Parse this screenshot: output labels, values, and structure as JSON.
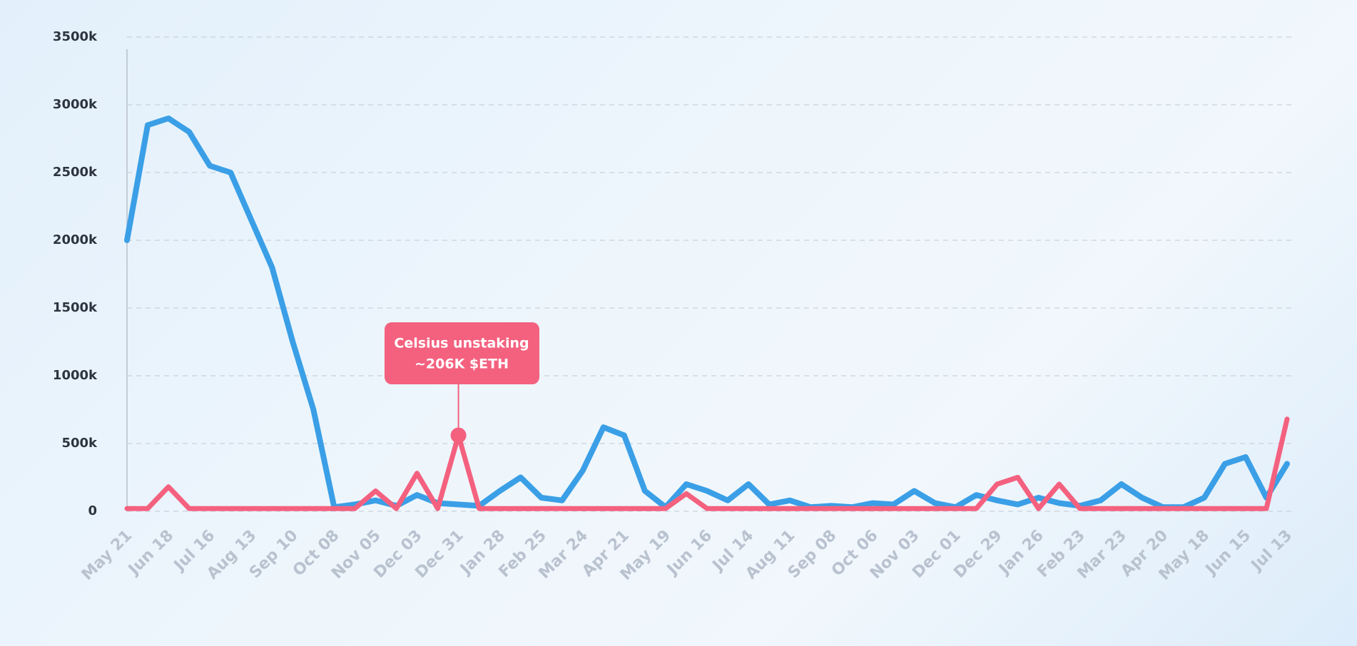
{
  "chart_data": {
    "type": "line",
    "categories": [
      "May 21",
      null,
      "Jun 18",
      null,
      "Jul 16",
      null,
      "Aug 13",
      null,
      "Sep 10",
      null,
      "Oct 08",
      null,
      "Nov 05",
      null,
      "Dec 03",
      null,
      "Dec 31",
      null,
      "Jan 28",
      null,
      "Feb 25",
      null,
      "Mar 24",
      null,
      "Apr 21",
      null,
      "May 19",
      null,
      "Jun 16",
      null,
      "Jul 14",
      null,
      "Aug 11",
      null,
      "Sep 08",
      null,
      "Oct 06",
      null,
      "Nov 03",
      null,
      "Dec 01",
      null,
      "Dec 29",
      null,
      "Jan 26",
      null,
      "Feb 23",
      null,
      "Mar 23",
      null,
      "Apr 20",
      null,
      "May 18",
      null,
      "Jun 15",
      null,
      "Jul 13"
    ],
    "series": [
      {
        "color": "#3a9fe6",
        "values": [
          2000000,
          2850000,
          2900000,
          2800000,
          2550000,
          2500000,
          2150000,
          1800000,
          1250000,
          750000,
          30000,
          50000,
          80000,
          40000,
          120000,
          60000,
          50000,
          40000,
          150000,
          250000,
          100000,
          80000,
          300000,
          620000,
          560000,
          150000,
          30000,
          200000,
          150000,
          80000,
          200000,
          50000,
          80000,
          30000,
          40000,
          30000,
          60000,
          50000,
          150000,
          60000,
          30000,
          120000,
          80000,
          50000,
          100000,
          60000,
          40000,
          80000,
          200000,
          100000,
          30000,
          30000,
          100000,
          350000,
          400000,
          100000,
          350000
        ]
      },
      {
        "color": "#f4617f",
        "values": [
          20000,
          20000,
          180000,
          20000,
          20000,
          20000,
          20000,
          20000,
          20000,
          20000,
          20000,
          20000,
          150000,
          20000,
          280000,
          20000,
          560000,
          20000,
          20000,
          20000,
          20000,
          20000,
          20000,
          20000,
          20000,
          20000,
          20000,
          130000,
          20000,
          20000,
          20000,
          20000,
          20000,
          20000,
          20000,
          20000,
          20000,
          20000,
          20000,
          20000,
          20000,
          20000,
          200000,
          250000,
          20000,
          200000,
          20000,
          20000,
          20000,
          20000,
          20000,
          20000,
          20000,
          20000,
          20000,
          20000,
          680000
        ]
      }
    ],
    "ylim": [
      0,
      3500000
    ],
    "yticks": [
      0,
      {
        "value": 500000,
        "label": "500k"
      },
      {
        "value": 1000000,
        "label": "1000k"
      },
      {
        "value": 1500000,
        "label": "1500k"
      },
      {
        "value": 2000000,
        "label": "2000k"
      },
      {
        "value": 2500000,
        "label": "2500k"
      },
      {
        "value": 3000000,
        "label": "3000k"
      },
      {
        "value": 3500000,
        "label": "3500k"
      }
    ],
    "grid": true,
    "annotation": [
      "Celsius unstaking",
      "~206K $ETH"
    ]
  }
}
